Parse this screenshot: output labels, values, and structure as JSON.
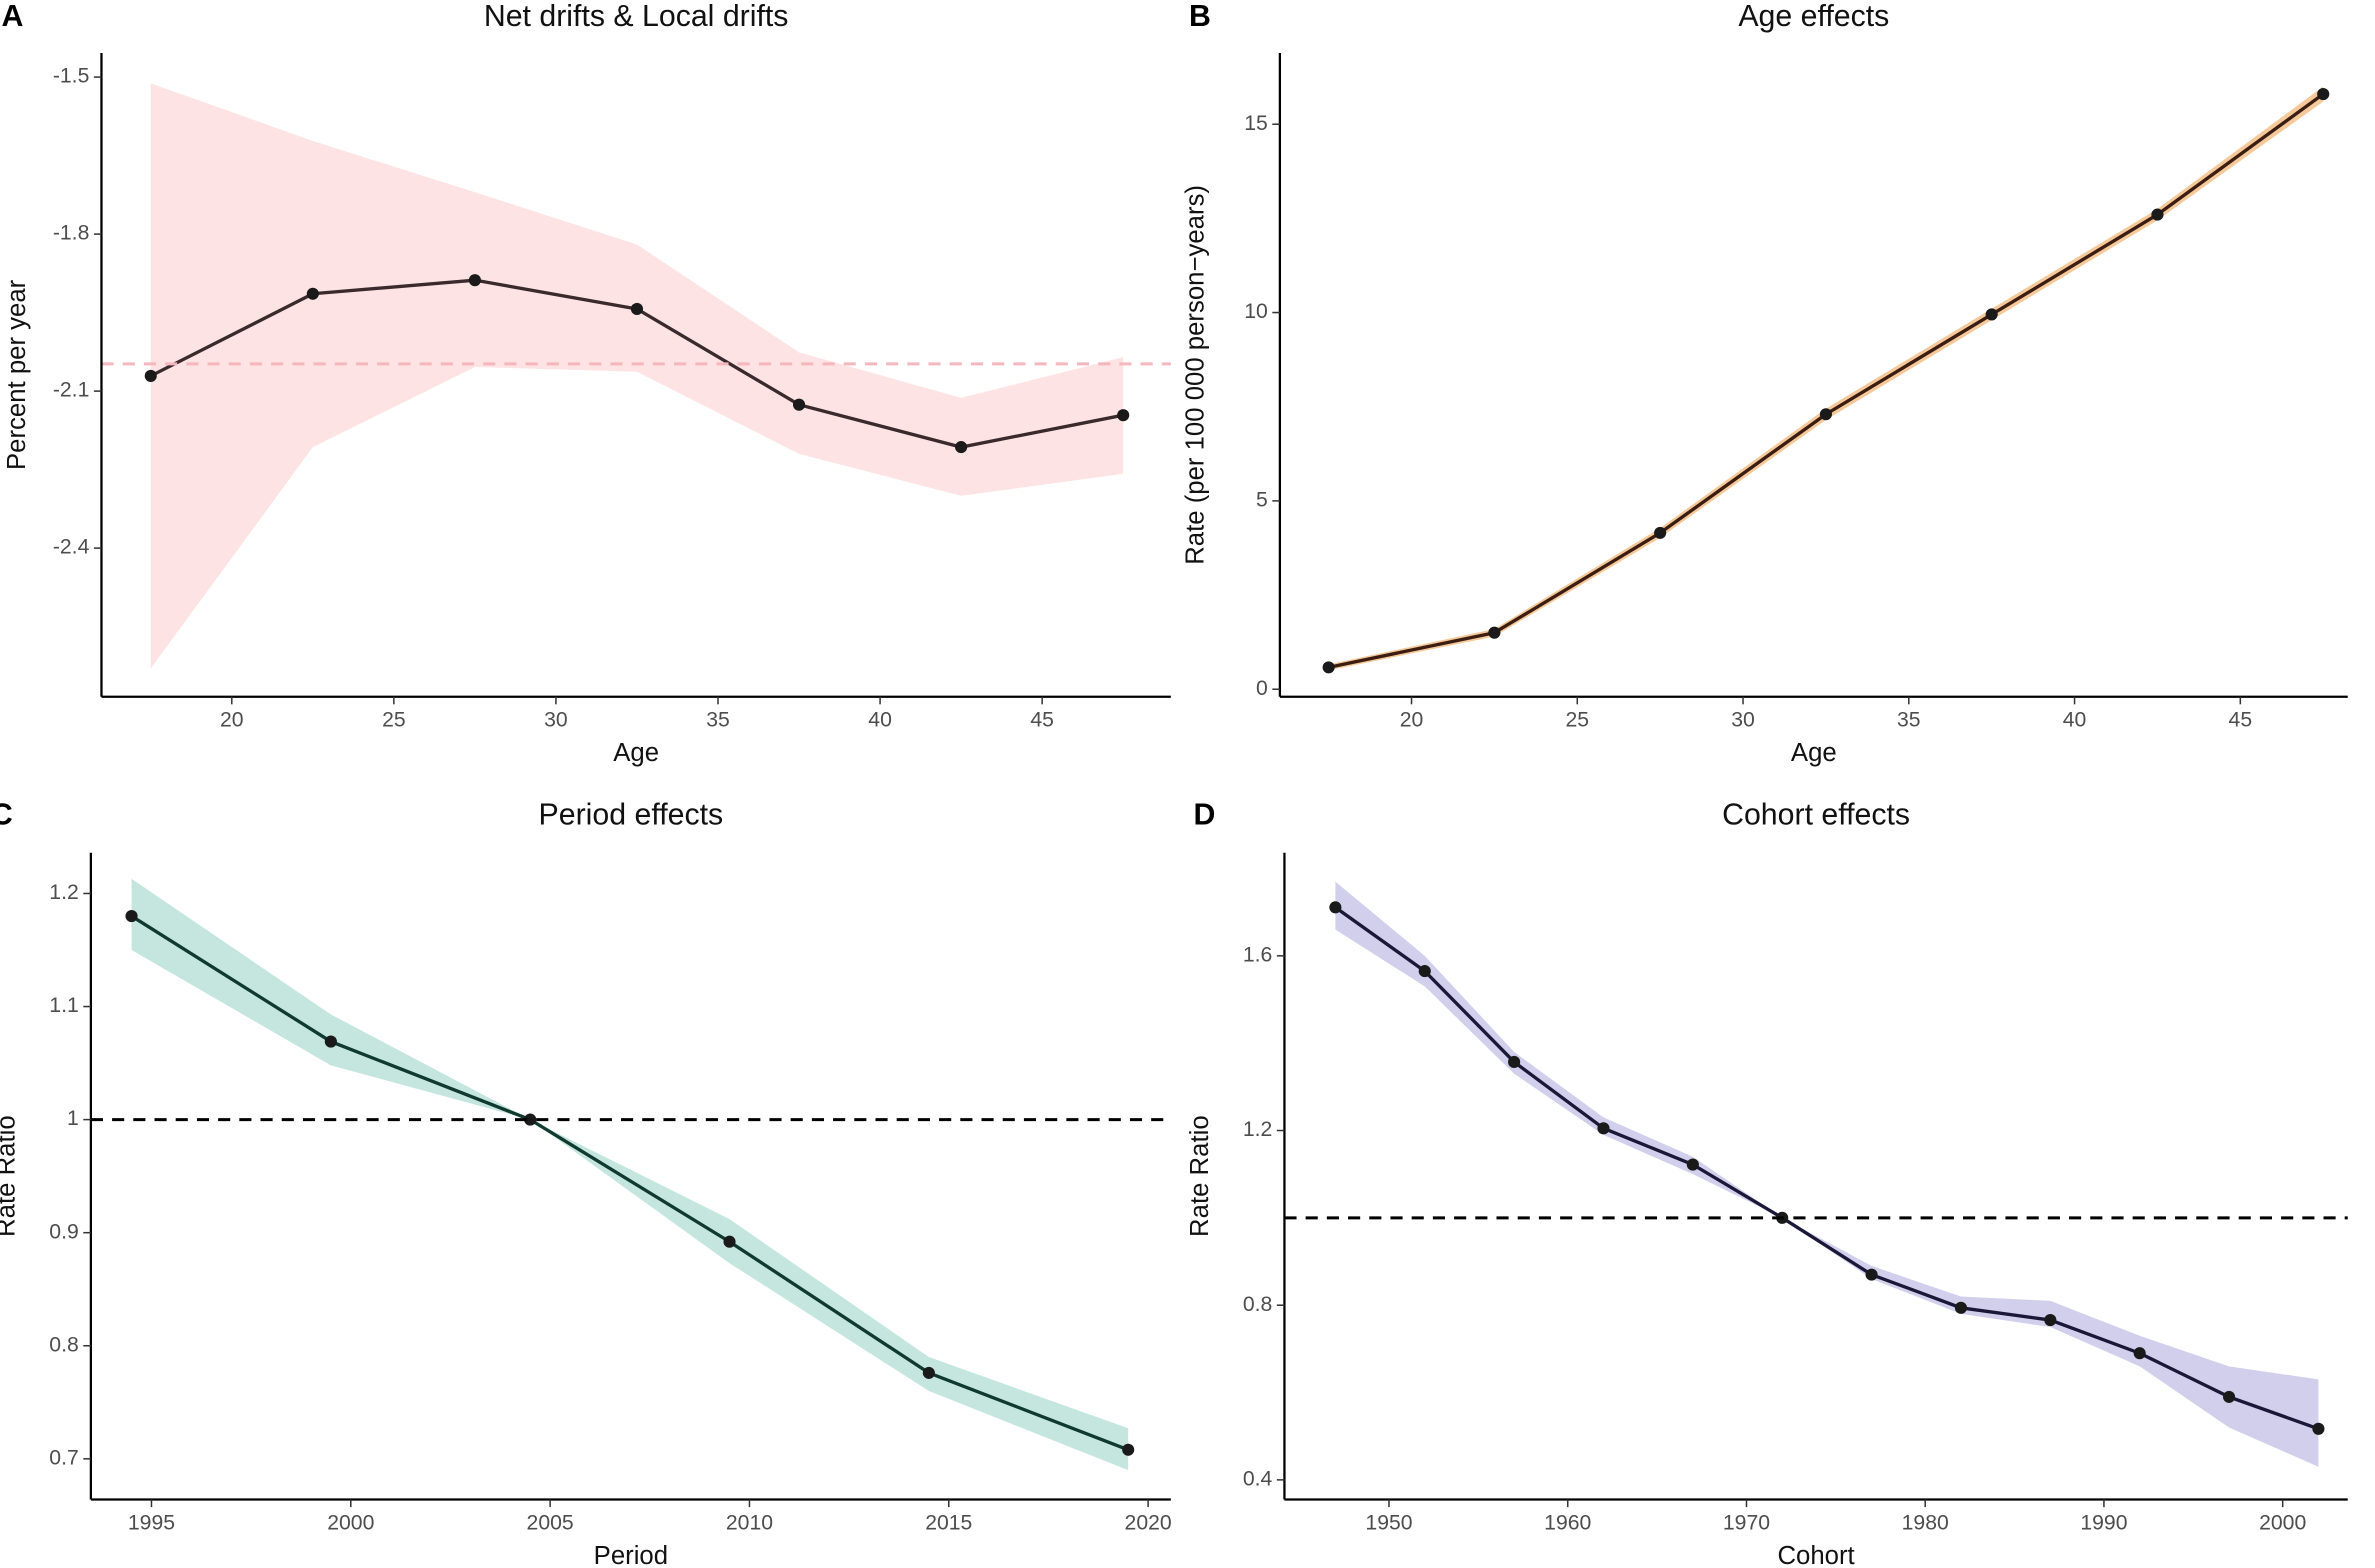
{
  "chart_data": [
    {
      "type": "line",
      "panel": "A",
      "title": "Net drifts & Local drifts",
      "x_label": "Age",
      "y_label": "Percent per year",
      "x": [
        17.5,
        22.5,
        27.5,
        32.5,
        37.5,
        42.5,
        47.5
      ],
      "values": [
        -2.071,
        -1.914,
        -1.888,
        -1.943,
        -2.126,
        -2.207,
        -2.146
      ],
      "lower": [
        -2.63,
        -2.207,
        -2.054,
        -2.063,
        -2.22,
        -2.3,
        -2.258
      ],
      "upper": [
        -1.512,
        -1.622,
        -1.72,
        -1.82,
        -2.026,
        -2.113,
        -2.035
      ],
      "color": "#3a2a2e",
      "band_color": "#fde3e3",
      "hline": {
        "value": -2.048,
        "color": "#f4b7be"
      },
      "xlim": [
        15.98,
        48.97
      ],
      "xticks": [
        20,
        25,
        30,
        35,
        40,
        45
      ],
      "ylim": [
        -2.684,
        -1.454
      ],
      "yticks": [
        -1.5,
        -1.8,
        -2.1,
        -2.4
      ]
    },
    {
      "type": "line",
      "panel": "B",
      "title": "Age effects",
      "x_label": "Age",
      "y_label": "Rate (per 100 000 person−years)",
      "x": [
        17.5,
        22.5,
        27.5,
        32.5,
        37.5,
        42.5,
        47.5
      ],
      "values": [
        0.58,
        1.5,
        4.15,
        7.3,
        9.95,
        12.6,
        15.8
      ],
      "lower": [
        0.5,
        1.4,
        4.02,
        7.15,
        9.8,
        12.45,
        15.6
      ],
      "upper": [
        0.66,
        1.6,
        4.28,
        7.45,
        10.1,
        12.75,
        16.0
      ],
      "color": "#3b1d12",
      "band_color": "#f6c99a",
      "xlim": [
        16.03,
        48.24
      ],
      "xticks": [
        20,
        25,
        30,
        35,
        40,
        45
      ],
      "ylim": [
        -0.2,
        16.89
      ],
      "yticks": [
        0,
        5,
        10,
        15
      ]
    },
    {
      "type": "line",
      "panel": "C",
      "title": "Period effects",
      "x_label": "Period",
      "y_label": "Rate Ratio",
      "x": [
        1994.5,
        1999.5,
        2004.5,
        2009.5,
        2014.5,
        2019.5
      ],
      "values": [
        1.18,
        1.069,
        1.0,
        0.892,
        0.776,
        0.708
      ],
      "lower": [
        1.15,
        1.048,
        1.0,
        0.873,
        0.76,
        0.69
      ],
      "upper": [
        1.213,
        1.093,
        1.0,
        0.912,
        0.79,
        0.727
      ],
      "color": "#103a30",
      "band_color": "#c4e6df",
      "hline": {
        "value": 1.0,
        "color": "#000000"
      },
      "xlim": [
        1993.48,
        2020.57
      ],
      "xticks": [
        1995,
        2000,
        2005,
        2010,
        2015,
        2020
      ],
      "ylim": [
        0.664,
        1.236
      ],
      "yticks": [
        0.7,
        0.8,
        0.9,
        1.0,
        1.1,
        1.2
      ]
    },
    {
      "type": "line",
      "panel": "D",
      "title": "Cohort effects",
      "x_label": "Cohort",
      "y_label": "Rate Ratio",
      "x": [
        1947,
        1952,
        1957,
        1962,
        1967,
        1972,
        1977,
        1982,
        1987,
        1992,
        1997,
        2002
      ],
      "values": [
        1.711,
        1.565,
        1.357,
        1.205,
        1.122,
        1.0,
        0.87,
        0.794,
        0.766,
        0.69,
        0.59,
        0.517
      ],
      "lower": [
        1.66,
        1.53,
        1.33,
        1.19,
        1.1,
        1.0,
        0.86,
        0.78,
        0.75,
        0.66,
        0.52,
        0.43
      ],
      "upper": [
        1.77,
        1.6,
        1.38,
        1.23,
        1.14,
        1.0,
        0.89,
        0.82,
        0.81,
        0.73,
        0.66,
        0.63
      ],
      "color": "#1a1838",
      "band_color": "#d2cfec",
      "hline": {
        "value": 1.0,
        "color": "#000000"
      },
      "xlim": [
        1944.15,
        2003.64
      ],
      "xticks": [
        1950,
        1960,
        1970,
        1980,
        1990,
        2000
      ],
      "ylim": [
        0.355,
        1.836
      ],
      "yticks": [
        0.4,
        0.8,
        1.2,
        1.6
      ]
    }
  ]
}
